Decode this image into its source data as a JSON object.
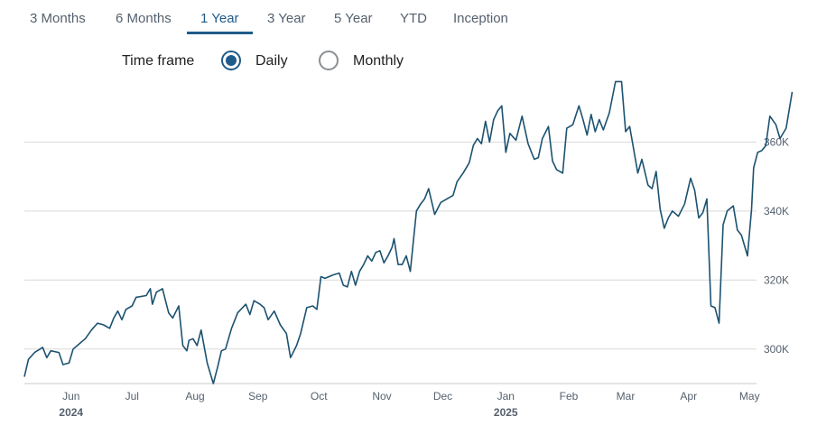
{
  "tabs": [
    {
      "label": "3 Months",
      "active": false
    },
    {
      "label": "6 Months",
      "active": false
    },
    {
      "label": "1 Year",
      "active": true
    },
    {
      "label": "3 Year",
      "active": false
    },
    {
      "label": "5 Year",
      "active": false
    },
    {
      "label": "YTD",
      "active": false
    },
    {
      "label": "Inception",
      "active": false
    }
  ],
  "timeframe": {
    "label": "Time frame",
    "options": [
      {
        "label": "Daily",
        "selected": true
      },
      {
        "label": "Monthly",
        "selected": false
      }
    ]
  },
  "colors": {
    "line": "#1c5270",
    "accent": "#1f5b8a",
    "grid": "#d9d9d9"
  },
  "chart_data": {
    "type": "line",
    "title": "",
    "xlabel": "",
    "ylabel": "",
    "ylim": [
      290000,
      375000
    ],
    "xlim": [
      "2024-05-09",
      "2025-05-09"
    ],
    "grid": true,
    "y_ticks": [
      {
        "value": 300000,
        "label": "300K"
      },
      {
        "value": 320000,
        "label": "320K"
      },
      {
        "value": 340000,
        "label": "340K"
      },
      {
        "value": 360000,
        "label": "360K"
      }
    ],
    "x_ticks": [
      {
        "date": "2024-06-01",
        "label": "Jun",
        "year": "2024"
      },
      {
        "date": "2024-07-01",
        "label": "Jul",
        "year": ""
      },
      {
        "date": "2024-08-01",
        "label": "Aug",
        "year": ""
      },
      {
        "date": "2024-09-01",
        "label": "Sep",
        "year": ""
      },
      {
        "date": "2024-10-01",
        "label": "Oct",
        "year": ""
      },
      {
        "date": "2024-11-01",
        "label": "Nov",
        "year": ""
      },
      {
        "date": "2024-12-01",
        "label": "Dec",
        "year": ""
      },
      {
        "date": "2025-01-01",
        "label": "Jan",
        "year": "2025"
      },
      {
        "date": "2025-02-01",
        "label": "Feb",
        "year": ""
      },
      {
        "date": "2025-03-01",
        "label": "Mar",
        "year": ""
      },
      {
        "date": "2025-04-01",
        "label": "Apr",
        "year": ""
      },
      {
        "date": "2025-05-01",
        "label": "May",
        "year": ""
      }
    ],
    "series": [
      {
        "points": [
          [
            "2024-05-09",
            292000
          ],
          [
            "2024-05-11",
            297000
          ],
          [
            "2024-05-14",
            299000
          ],
          [
            "2024-05-18",
            300500
          ],
          [
            "2024-05-20",
            297500
          ],
          [
            "2024-05-22",
            299500
          ],
          [
            "2024-05-26",
            299000
          ],
          [
            "2024-05-28",
            295500
          ],
          [
            "2024-05-31",
            296000
          ],
          [
            "2024-06-02",
            300000
          ],
          [
            "2024-06-05",
            301500
          ],
          [
            "2024-06-08",
            303000
          ],
          [
            "2024-06-11",
            305500
          ],
          [
            "2024-06-14",
            307500
          ],
          [
            "2024-06-17",
            307000
          ],
          [
            "2024-06-20",
            306000
          ],
          [
            "2024-06-22",
            309000
          ],
          [
            "2024-06-24",
            311000
          ],
          [
            "2024-06-26",
            308500
          ],
          [
            "2024-06-28",
            311500
          ],
          [
            "2024-07-01",
            312500
          ],
          [
            "2024-07-03",
            315000
          ],
          [
            "2024-07-08",
            315500
          ],
          [
            "2024-07-10",
            317500
          ],
          [
            "2024-07-11",
            313000
          ],
          [
            "2024-07-13",
            316500
          ],
          [
            "2024-07-16",
            317500
          ],
          [
            "2024-07-19",
            310500
          ],
          [
            "2024-07-21",
            309000
          ],
          [
            "2024-07-24",
            312500
          ],
          [
            "2024-07-26",
            301000
          ],
          [
            "2024-07-28",
            299500
          ],
          [
            "2024-07-29",
            302500
          ],
          [
            "2024-07-31",
            303000
          ],
          [
            "2024-08-02",
            301000
          ],
          [
            "2024-08-04",
            305500
          ],
          [
            "2024-08-07",
            296000
          ],
          [
            "2024-08-10",
            290000
          ],
          [
            "2024-08-12",
            294500
          ],
          [
            "2024-08-14",
            299500
          ],
          [
            "2024-08-16",
            300000
          ],
          [
            "2024-08-19",
            306000
          ],
          [
            "2024-08-22",
            310500
          ],
          [
            "2024-08-26",
            313000
          ],
          [
            "2024-08-28",
            310000
          ],
          [
            "2024-08-30",
            314000
          ],
          [
            "2024-09-02",
            313000
          ],
          [
            "2024-09-04",
            312000
          ],
          [
            "2024-09-06",
            308500
          ],
          [
            "2024-09-09",
            311000
          ],
          [
            "2024-09-12",
            307000
          ],
          [
            "2024-09-15",
            304500
          ],
          [
            "2024-09-17",
            297500
          ],
          [
            "2024-09-20",
            301000
          ],
          [
            "2024-09-22",
            304500
          ],
          [
            "2024-09-25",
            312000
          ],
          [
            "2024-09-28",
            312500
          ],
          [
            "2024-09-30",
            311500
          ],
          [
            "2024-10-02",
            321000
          ],
          [
            "2024-10-04",
            320500
          ],
          [
            "2024-10-08",
            321500
          ],
          [
            "2024-10-11",
            322000
          ],
          [
            "2024-10-13",
            318500
          ],
          [
            "2024-10-15",
            318000
          ],
          [
            "2024-10-17",
            322500
          ],
          [
            "2024-10-19",
            318500
          ],
          [
            "2024-10-21",
            322500
          ],
          [
            "2024-10-23",
            324500
          ],
          [
            "2024-10-25",
            327000
          ],
          [
            "2024-10-27",
            325500
          ],
          [
            "2024-10-29",
            328000
          ],
          [
            "2024-10-31",
            328500
          ],
          [
            "2024-11-02",
            325000
          ],
          [
            "2024-11-04",
            327000
          ],
          [
            "2024-11-06",
            329500
          ],
          [
            "2024-11-07",
            332000
          ],
          [
            "2024-11-09",
            324500
          ],
          [
            "2024-11-11",
            324500
          ],
          [
            "2024-11-13",
            327000
          ],
          [
            "2024-11-15",
            322500
          ],
          [
            "2024-11-18",
            340000
          ],
          [
            "2024-11-20",
            342000
          ],
          [
            "2024-11-22",
            343500
          ],
          [
            "2024-11-24",
            346500
          ],
          [
            "2024-11-27",
            339000
          ],
          [
            "2024-11-30",
            342500
          ],
          [
            "2024-12-03",
            343500
          ],
          [
            "2024-12-06",
            344500
          ],
          [
            "2024-12-08",
            348500
          ],
          [
            "2024-12-11",
            351000
          ],
          [
            "2024-12-14",
            354000
          ],
          [
            "2024-12-16",
            359000
          ],
          [
            "2024-12-18",
            361000
          ],
          [
            "2024-12-20",
            359500
          ],
          [
            "2024-12-22",
            366000
          ],
          [
            "2024-12-24",
            360000
          ],
          [
            "2024-12-26",
            366500
          ],
          [
            "2024-12-28",
            369000
          ],
          [
            "2024-12-30",
            370500
          ],
          [
            "2025-01-01",
            357000
          ],
          [
            "2025-01-03",
            362500
          ],
          [
            "2025-01-06",
            360500
          ],
          [
            "2025-01-09",
            367500
          ],
          [
            "2025-01-12",
            359500
          ],
          [
            "2025-01-15",
            355000
          ],
          [
            "2025-01-17",
            355500
          ],
          [
            "2025-01-19",
            361000
          ],
          [
            "2025-01-22",
            364500
          ],
          [
            "2025-01-24",
            354500
          ],
          [
            "2025-01-26",
            352000
          ],
          [
            "2025-01-29",
            351000
          ],
          [
            "2025-01-31",
            364000
          ],
          [
            "2025-02-03",
            365000
          ],
          [
            "2025-02-06",
            370500
          ],
          [
            "2025-02-08",
            366500
          ],
          [
            "2025-02-10",
            362000
          ],
          [
            "2025-02-12",
            368000
          ],
          [
            "2025-02-14",
            363000
          ],
          [
            "2025-02-16",
            366500
          ],
          [
            "2025-02-18",
            363500
          ],
          [
            "2025-02-21",
            368500
          ],
          [
            "2025-02-24",
            377500
          ],
          [
            "2025-02-27",
            377500
          ],
          [
            "2025-03-01",
            363000
          ],
          [
            "2025-03-03",
            364500
          ],
          [
            "2025-03-07",
            351000
          ],
          [
            "2025-03-09",
            355000
          ],
          [
            "2025-03-12",
            347500
          ],
          [
            "2025-03-14",
            346500
          ],
          [
            "2025-03-16",
            351500
          ],
          [
            "2025-03-18",
            340500
          ],
          [
            "2025-03-20",
            335000
          ],
          [
            "2025-03-22",
            338000
          ],
          [
            "2025-03-24",
            340000
          ],
          [
            "2025-03-27",
            338500
          ],
          [
            "2025-03-30",
            342000
          ],
          [
            "2025-04-02",
            349500
          ],
          [
            "2025-04-04",
            346000
          ],
          [
            "2025-04-06",
            338000
          ],
          [
            "2025-04-08",
            339500
          ],
          [
            "2025-04-10",
            343500
          ],
          [
            "2025-04-12",
            312500
          ],
          [
            "2025-04-14",
            312000
          ],
          [
            "2025-04-16",
            307500
          ],
          [
            "2025-04-18",
            336000
          ],
          [
            "2025-04-20",
            340000
          ],
          [
            "2025-04-23",
            341500
          ],
          [
            "2025-04-25",
            334500
          ],
          [
            "2025-04-27",
            333000
          ],
          [
            "2025-04-30",
            327000
          ],
          [
            "2025-05-02",
            340500
          ],
          [
            "2025-05-03",
            352500
          ],
          [
            "2025-05-05",
            357000
          ],
          [
            "2025-05-07",
            357500
          ],
          [
            "2025-05-09",
            359000
          ],
          [
            "2025-05-11",
            367500
          ],
          [
            "2025-05-14",
            365000
          ],
          [
            "2025-05-16",
            361000
          ],
          [
            "2025-05-19",
            364000
          ],
          [
            "2025-05-22",
            374500
          ]
        ]
      }
    ]
  }
}
